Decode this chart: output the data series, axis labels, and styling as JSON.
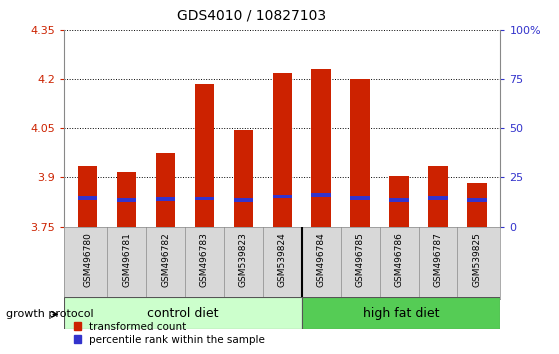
{
  "title": "GDS4010 / 10827103",
  "samples": [
    "GSM496780",
    "GSM496781",
    "GSM496782",
    "GSM496783",
    "GSM539823",
    "GSM539824",
    "GSM496784",
    "GSM496785",
    "GSM496786",
    "GSM496787",
    "GSM539825"
  ],
  "bar_tops": [
    3.935,
    3.918,
    3.975,
    4.185,
    4.045,
    4.22,
    4.23,
    4.2,
    3.905,
    3.935,
    3.882
  ],
  "blue_values": [
    3.832,
    3.825,
    3.828,
    3.83,
    3.825,
    3.836,
    3.84,
    3.832,
    3.826,
    3.832,
    3.826
  ],
  "ymin": 3.75,
  "ymax": 4.35,
  "y_ticks": [
    3.75,
    3.9,
    4.05,
    4.2,
    4.35
  ],
  "y_tick_labels": [
    "3.75",
    "3.9",
    "4.05",
    "4.2",
    "4.35"
  ],
  "right_y_ticks": [
    0,
    25,
    50,
    75,
    100
  ],
  "right_y_labels": [
    "0",
    "25",
    "50",
    "75",
    "100%"
  ],
  "bar_color": "#cc2200",
  "blue_color": "#3333cc",
  "control_label": "control diet",
  "hfd_label": "high fat diet",
  "control_color": "#ccffcc",
  "hfd_color": "#55cc55",
  "group_protocol_label": "growth protocol",
  "legend_red_label": "transformed count",
  "legend_blue_label": "percentile rank within the sample",
  "n_control": 6,
  "n_hfd": 5,
  "bar_width": 0.5
}
